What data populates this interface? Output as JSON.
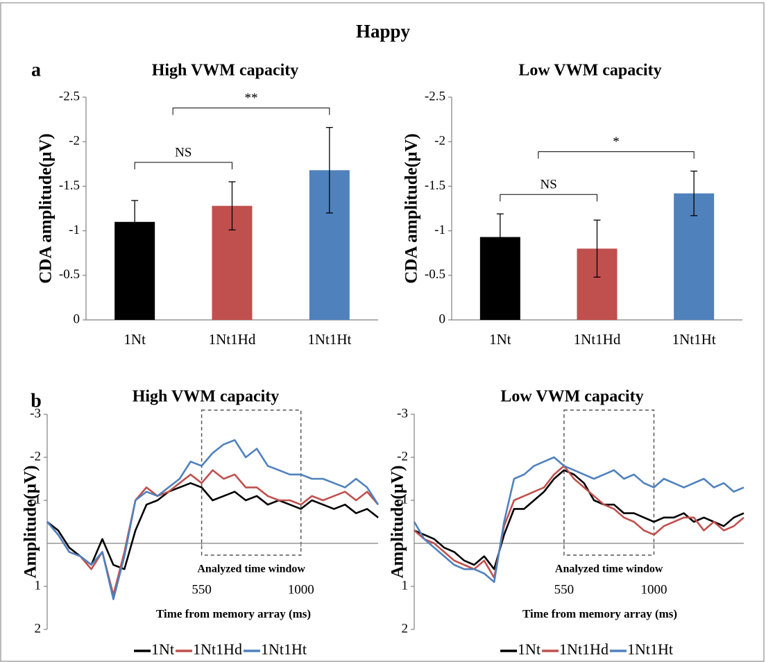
{
  "title": "Happy",
  "panels": [
    "a",
    "b"
  ],
  "chart_data": [
    {
      "type": "bar",
      "title": "High VWM capacity",
      "ylabel": "CDA amplitude(µV)",
      "categories": [
        "1Nt",
        "1Nt1Hd",
        "1Nt1Ht"
      ],
      "values": [
        -1.1,
        -1.28,
        -1.68
      ],
      "errors": [
        0.24,
        0.27,
        0.48
      ],
      "colors": [
        "#000000",
        "#c0504d",
        "#4f81bd"
      ],
      "ylim": [
        0,
        -2.5
      ],
      "yticks": [
        0,
        -0.5,
        -1,
        -1.5,
        -2,
        -2.5
      ],
      "annotations": [
        {
          "text": "NS",
          "from": 0,
          "to": 1
        },
        {
          "text": "**",
          "from": 0,
          "to": 2
        }
      ]
    },
    {
      "type": "bar",
      "title": "Low VWM capacity",
      "ylabel": "CDA amplitude(µV)",
      "categories": [
        "1Nt",
        "1Nt1Hd",
        "1Nt1Ht"
      ],
      "values": [
        -0.93,
        -0.8,
        -1.42
      ],
      "errors": [
        0.26,
        0.32,
        0.25
      ],
      "colors": [
        "#000000",
        "#c0504d",
        "#4f81bd"
      ],
      "ylim": [
        0,
        -2.5
      ],
      "yticks": [
        0,
        -0.5,
        -1,
        -1.5,
        -2,
        -2.5
      ],
      "annotations": [
        {
          "text": "NS",
          "from": 0,
          "to": 1
        },
        {
          "text": "*",
          "from": 0,
          "to": 2
        }
      ]
    },
    {
      "type": "line",
      "title": "High VWM capacity",
      "ylabel": "Amplitude(µV)",
      "xlabel": "Time from memory array (ms)",
      "annotation": "Analyzed time window",
      "x": [
        -150,
        -100,
        -50,
        0,
        50,
        100,
        150,
        200,
        250,
        300,
        350,
        400,
        450,
        500,
        550,
        600,
        650,
        700,
        750,
        800,
        850,
        900,
        950,
        1000,
        1050,
        1100,
        1150,
        1200,
        1250,
        1300,
        1350
      ],
      "series": [
        {
          "name": "1Nt",
          "color": "#000000",
          "values": [
            -0.5,
            -0.3,
            0.1,
            0.3,
            0.5,
            -0.1,
            0.5,
            0.6,
            -0.3,
            -0.9,
            -1.0,
            -1.2,
            -1.3,
            -1.4,
            -1.3,
            -1.0,
            -1.1,
            -1.2,
            -1.0,
            -1.1,
            -0.9,
            -1.0,
            -0.9,
            -0.8,
            -1.0,
            -0.9,
            -0.8,
            -0.9,
            -0.7,
            -0.8,
            -0.6
          ]
        },
        {
          "name": "1Nt1Hd",
          "color": "#c0504d",
          "values": [
            -0.5,
            -0.2,
            0.2,
            0.3,
            0.6,
            0.2,
            1.2,
            0.2,
            -1.0,
            -1.3,
            -1.1,
            -1.2,
            -1.4,
            -1.6,
            -1.4,
            -1.7,
            -1.5,
            -1.6,
            -1.3,
            -1.3,
            -1.1,
            -1.0,
            -1.0,
            -0.9,
            -1.1,
            -1.0,
            -1.1,
            -1.2,
            -1.0,
            -1.2,
            -0.9
          ]
        },
        {
          "name": "1Nt1Ht",
          "color": "#4f81bd",
          "values": [
            -0.5,
            -0.2,
            0.2,
            0.3,
            0.5,
            0.2,
            1.3,
            0.3,
            -1.0,
            -1.2,
            -1.1,
            -1.3,
            -1.5,
            -1.9,
            -1.8,
            -2.1,
            -2.3,
            -2.4,
            -2.0,
            -2.2,
            -1.8,
            -1.7,
            -1.6,
            -1.6,
            -1.5,
            -1.5,
            -1.4,
            -1.3,
            -1.5,
            -1.3,
            -0.9
          ]
        }
      ],
      "xlim": [
        -150,
        1350
      ],
      "xticks": [
        550,
        1000
      ],
      "ylim": [
        2,
        -3
      ],
      "yticks": [
        -3,
        -2,
        -1,
        1,
        2
      ],
      "legend": "bottom"
    },
    {
      "type": "line",
      "title": "Low VWM capacity",
      "ylabel": "Amplitude(µV)",
      "xlabel": "Time from memory array (ms)",
      "annotation": "Analyzed time window",
      "x": [
        -200,
        -150,
        -100,
        -50,
        0,
        50,
        100,
        150,
        200,
        250,
        300,
        350,
        400,
        450,
        500,
        550,
        600,
        650,
        700,
        750,
        800,
        850,
        900,
        950,
        1000,
        1050,
        1100,
        1150,
        1200,
        1250,
        1300,
        1350,
        1400,
        1450
      ],
      "series": [
        {
          "name": "1Nt",
          "color": "#000000",
          "values": [
            -0.3,
            -0.2,
            -0.1,
            0.1,
            0.2,
            0.4,
            0.5,
            0.3,
            0.6,
            -0.2,
            -0.8,
            -0.8,
            -1.0,
            -1.2,
            -1.5,
            -1.7,
            -1.6,
            -1.4,
            -1.0,
            -0.9,
            -0.9,
            -0.7,
            -0.7,
            -0.6,
            -0.5,
            -0.6,
            -0.6,
            -0.7,
            -0.5,
            -0.6,
            -0.5,
            -0.4,
            -0.6,
            -0.7
          ]
        },
        {
          "name": "1Nt1Hd",
          "color": "#c0504d",
          "values": [
            -0.3,
            -0.1,
            0.0,
            0.2,
            0.4,
            0.5,
            0.6,
            0.4,
            0.8,
            -0.4,
            -1.0,
            -1.1,
            -1.2,
            -1.3,
            -1.6,
            -1.8,
            -1.5,
            -1.3,
            -1.1,
            -0.9,
            -0.8,
            -0.6,
            -0.5,
            -0.3,
            -0.2,
            -0.4,
            -0.5,
            -0.6,
            -0.6,
            -0.3,
            -0.5,
            -0.3,
            -0.4,
            -0.6
          ]
        },
        {
          "name": "1Nt1Ht",
          "color": "#4f81bd",
          "values": [
            -0.5,
            -0.1,
            0.1,
            0.3,
            0.5,
            0.6,
            0.6,
            0.7,
            0.9,
            -0.5,
            -1.5,
            -1.6,
            -1.8,
            -1.9,
            -2.0,
            -1.8,
            -1.7,
            -1.6,
            -1.5,
            -1.6,
            -1.7,
            -1.5,
            -1.6,
            -1.4,
            -1.3,
            -1.5,
            -1.4,
            -1.3,
            -1.4,
            -1.5,
            -1.3,
            -1.4,
            -1.2,
            -1.3
          ]
        }
      ],
      "xlim": [
        -200,
        1450
      ],
      "xticks": [
        550,
        1000
      ],
      "ylim": [
        2,
        -3
      ],
      "yticks": [
        -3,
        -2,
        -1,
        1,
        2
      ],
      "legend": "bottom"
    }
  ]
}
